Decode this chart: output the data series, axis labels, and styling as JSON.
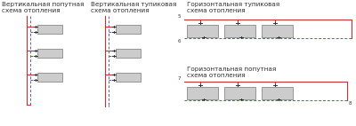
{
  "bg_color": "#ffffff",
  "red": "#c83232",
  "blue": "#5060c8",
  "gray_fill": "#cccccc",
  "gray_edge": "#888888",
  "text_color": "#333333",
  "title1": "Вертикальная попутная\nсхема отопления",
  "title2": "Вертикальная тупиковая\nсхема отопления",
  "title3": "Горизонтальная тупиковая\nсхема отопления",
  "title4": "Горизонтальная попутная\nсхема отопления",
  "font_size": 5.2,
  "label5": "5",
  "label6": "6",
  "label7": "7",
  "label8": "8"
}
